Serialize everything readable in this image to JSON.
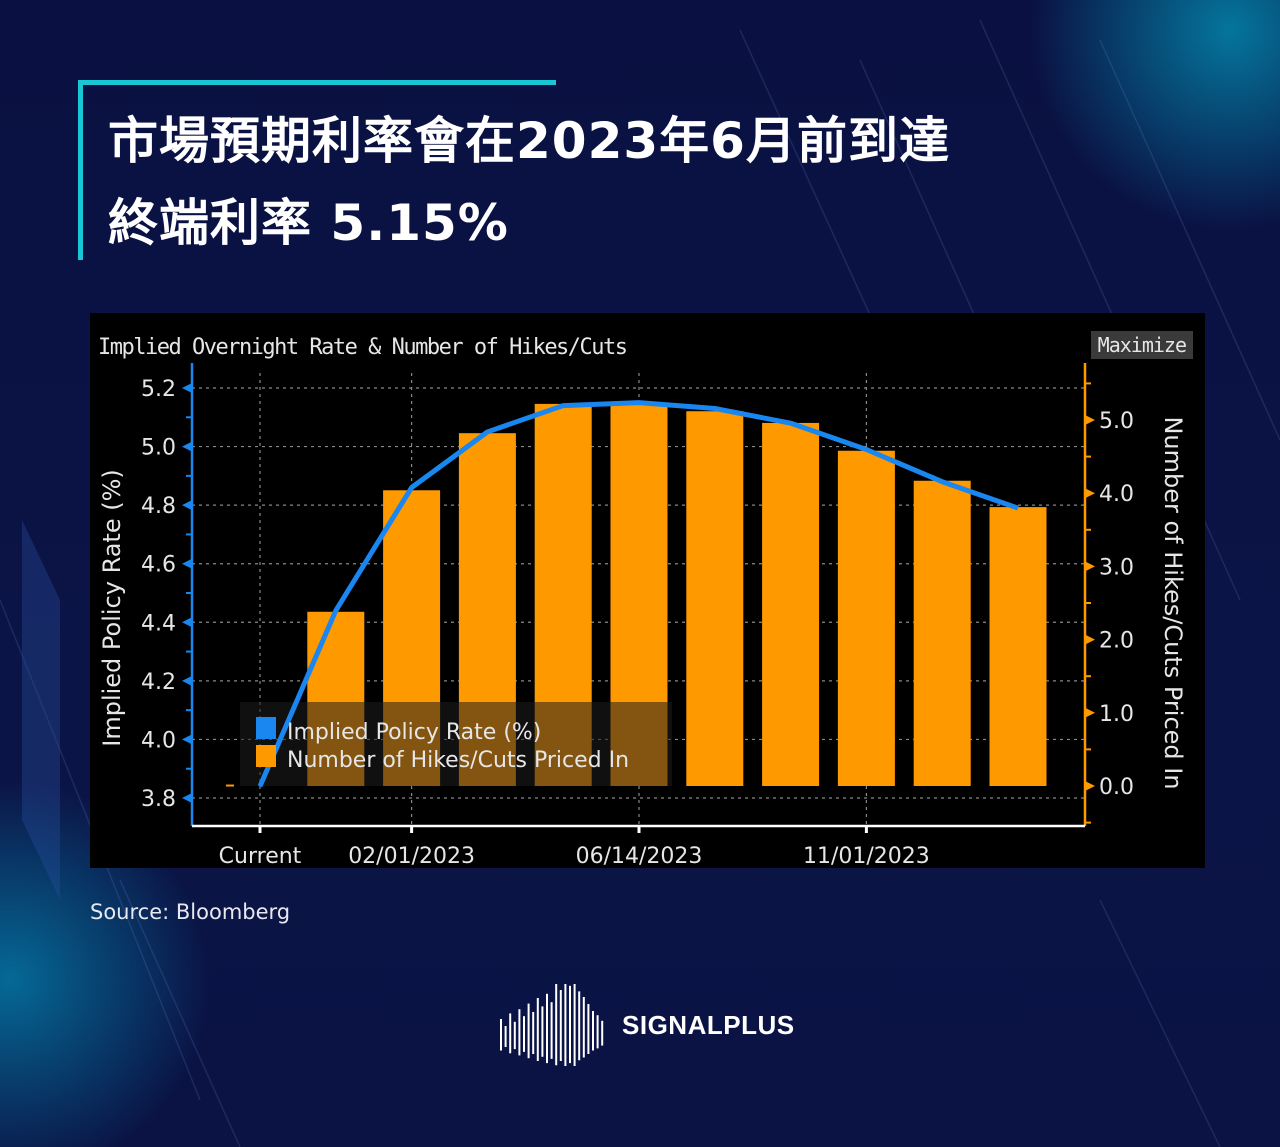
{
  "header": {
    "title_line1": "市場預期利率會在2023年6月前到達",
    "title_line2": "終端利率 5.15%"
  },
  "chart_panel": {
    "title": "Implied Overnight Rate & Number of Hikes/Cuts",
    "maximize_label": "Maximize"
  },
  "source": "Source:  Bloomberg",
  "logo": {
    "text": "SIGNALPLUS"
  },
  "colors": {
    "line": "#1a86f0",
    "bars": "#ff9900",
    "background": "#000000",
    "accent": "#19c6d6"
  },
  "chart_data": {
    "type": "bar+line",
    "categories": [
      "Current",
      "",
      "02/01/2023",
      "",
      "",
      "06/14/2023",
      "",
      "",
      "11/01/2023",
      "",
      ""
    ],
    "x_tick_labels": [
      "Current",
      "02/01/2023",
      "06/14/2023",
      "11/01/2023"
    ],
    "ylabel_left": "Implied Policy Rate (%)",
    "ylabel_right": "Number of Hikes/Cuts Priced In",
    "ylim_left": [
      3.8,
      5.2
    ],
    "yticks_left": [
      "3.8",
      "4.0",
      "4.2",
      "4.4",
      "4.6",
      "4.8",
      "5.0",
      "5.2"
    ],
    "ylim_right": [
      0.0,
      5.0
    ],
    "yticks_right": [
      "0.0",
      "1.0",
      "2.0",
      "3.0",
      "4.0",
      "5.0"
    ],
    "grid": true,
    "legend_placement": "bottom-left",
    "series": [
      {
        "name": "Implied Policy Rate (%)",
        "type": "line",
        "axis": "left",
        "values": [
          3.84,
          4.44,
          4.86,
          5.05,
          5.14,
          5.15,
          5.13,
          5.08,
          4.99,
          4.88,
          4.79
        ]
      },
      {
        "name": "Number of Hikes/Cuts Priced In",
        "type": "bar",
        "axis": "right",
        "values": [
          0.02,
          2.38,
          4.04,
          4.82,
          5.22,
          5.23,
          5.12,
          4.96,
          4.58,
          4.17,
          3.81
        ]
      }
    ]
  }
}
